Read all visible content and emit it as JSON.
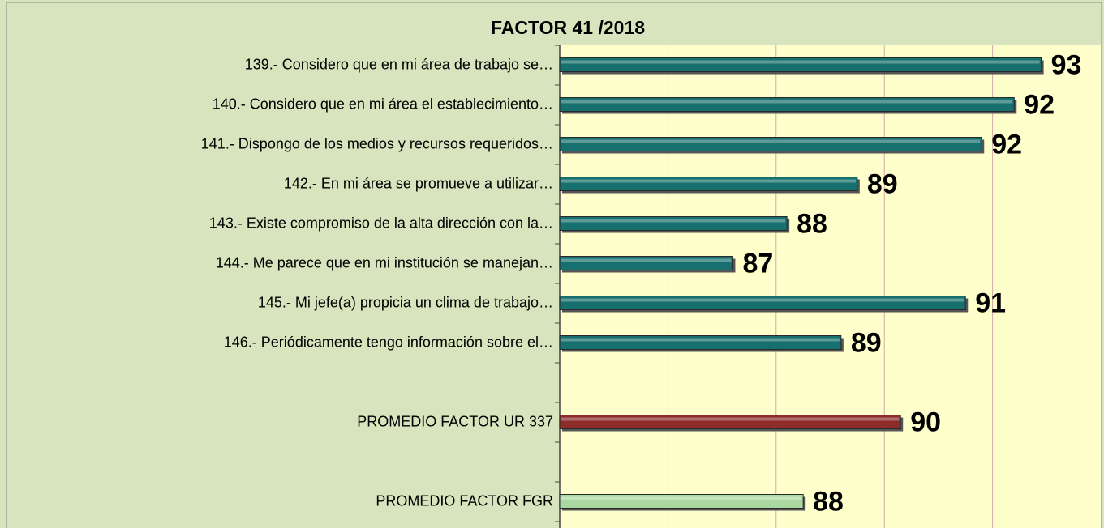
{
  "chart_data": {
    "type": "barh",
    "title": "FACTOR 41 /2018",
    "categories": [
      "139.- Considero que en mi área de trabajo se…",
      "140.- Considero que en mi área el establecimiento…",
      "141.- Dispongo de los medios y recursos requeridos…",
      "142.- En mi área se promueve a utilizar…",
      "143.- Existe compromiso de la alta dirección con la…",
      "144.- Me parece que en mi institución se manejan…",
      "145.- Mi jefe(a) propicia un clima de trabajo…",
      "146.- Periódicamente tengo información sobre el…",
      null,
      "PROMEDIO FACTOR UR 337",
      null,
      "PROMEDIO FACTOR FGR"
    ],
    "values": [
      92.9,
      92.4,
      91.8,
      89.5,
      88.2,
      87.2,
      91.5,
      89.2,
      null,
      90.3,
      null,
      88.5
    ],
    "value_labels": [
      "93",
      "92",
      "92",
      "89",
      "88",
      "87",
      "91",
      "89",
      null,
      "90",
      null,
      "88"
    ],
    "colors": [
      "#17706e",
      "#17706e",
      "#17706e",
      "#17706e",
      "#17706e",
      "#17706e",
      "#17706e",
      "#17706e",
      null,
      "#8e2c2c",
      null,
      "#a9d8a0"
    ],
    "xlim": [
      84,
      94
    ],
    "xticks": [
      84,
      86,
      88,
      90,
      92,
      94
    ],
    "grid": true
  }
}
